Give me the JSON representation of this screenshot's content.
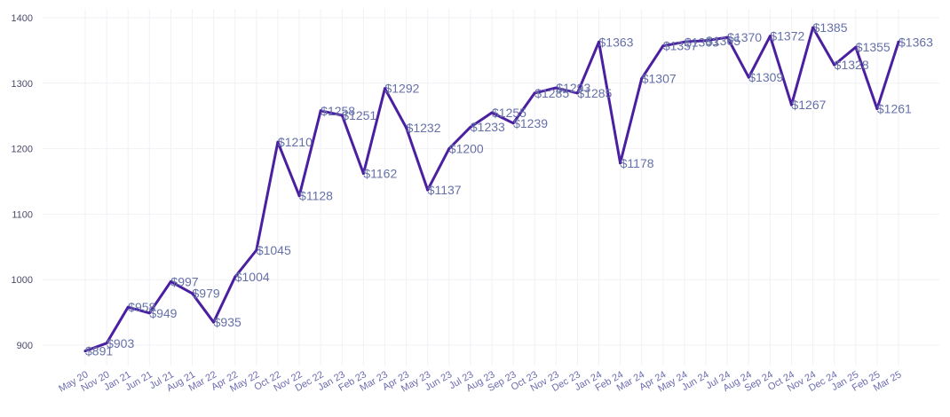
{
  "colors": {
    "line": "#4a1fa0",
    "grid": "#f1f1f6",
    "tick_text": "#6b6bb0",
    "label_text": "#6570a8"
  },
  "chart_data": {
    "type": "line",
    "title": "",
    "xlabel": "",
    "ylabel": "",
    "ylim": [
      870,
      1410
    ],
    "yticks": [
      900,
      1000,
      1100,
      1200,
      1300,
      1400
    ],
    "grid": true,
    "legend": "none",
    "categories": [
      "May 20",
      "Nov 20",
      "Jan 21",
      "Jun 21",
      "Jul 21",
      "Aug 21",
      "Mar 22",
      "Apr 22",
      "May 22",
      "Oct 22",
      "Nov 22",
      "Dec 22",
      "Jan 23",
      "Feb 23",
      "Mar 23",
      "Apr 23",
      "May 23",
      "Jun 23",
      "Jul 23",
      "Aug 23",
      "Sep 23",
      "Oct 23",
      "Nov 23",
      "Dec 23",
      "Jan 24",
      "Feb 24",
      "Mar 24",
      "Apr 24",
      "May 24",
      "Jun 24",
      "Jul 24",
      "Aug 24",
      "Sep 24",
      "Oct 24",
      "Nov 24",
      "Dec 24",
      "Jan 25",
      "Feb 25",
      "Mar 25"
    ],
    "series": [
      {
        "values": [
          891,
          903,
          958,
          949,
          997,
          979,
          935,
          1004,
          1045,
          1210,
          1128,
          1258,
          1251,
          1162,
          1292,
          1232,
          1137,
          1200,
          1233,
          1255,
          1239,
          1285,
          1293,
          1285,
          1363,
          1178,
          1307,
          1357,
          1363,
          1365,
          1370,
          1309,
          1372,
          1267,
          1385,
          1328,
          1355,
          1261,
          1363
        ],
        "labels": [
          "$891",
          "$903",
          "$958",
          "$949",
          "$997",
          "$979",
          "$935",
          "$1004",
          "$1045",
          "$1210",
          "$1128",
          "$1258",
          "$1251",
          "$1162",
          "$1292",
          "$1232",
          "$1137",
          "$1200",
          "$1233",
          "$1255",
          "$1239",
          "$1285",
          "$1293",
          "$1285",
          "$1363",
          "$1178",
          "$1307",
          "$1357",
          "$1363",
          "$1365",
          "$1370",
          "$1309",
          "$1372",
          "$1267",
          "$1385",
          "$1328",
          "$1355",
          "$1261",
          "$1363"
        ]
      }
    ]
  }
}
